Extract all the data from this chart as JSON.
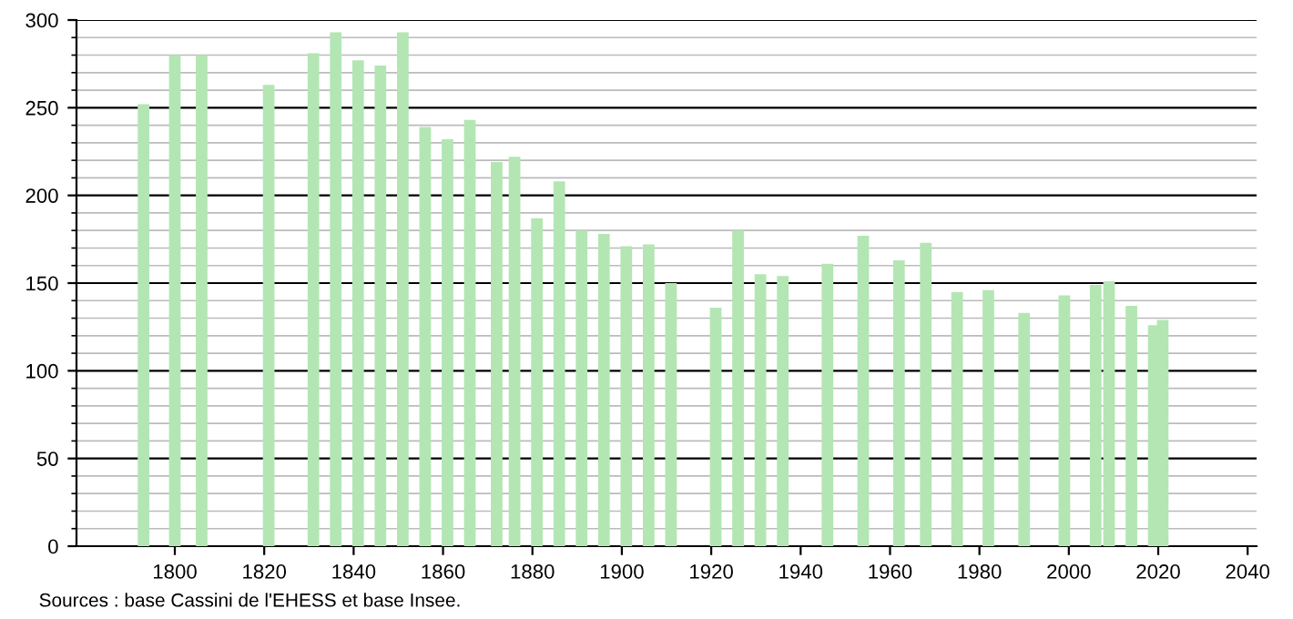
{
  "chart_data": {
    "type": "bar",
    "x": [
      1793,
      1800,
      1806,
      1821,
      1831,
      1836,
      1841,
      1846,
      1851,
      1856,
      1861,
      1866,
      1872,
      1876,
      1881,
      1886,
      1891,
      1896,
      1901,
      1906,
      1911,
      1921,
      1926,
      1931,
      1936,
      1946,
      1954,
      1962,
      1968,
      1975,
      1982,
      1990,
      1999,
      2006,
      2009,
      2014,
      2019,
      2021
    ],
    "values": [
      252,
      280,
      280,
      263,
      281,
      293,
      277,
      274,
      293,
      239,
      232,
      243,
      219,
      222,
      187,
      208,
      180,
      178,
      171,
      172,
      150,
      136,
      180,
      155,
      154,
      161,
      177,
      163,
      173,
      145,
      146,
      133,
      143,
      149,
      151,
      137,
      126,
      129
    ],
    "color": "#b3e6b3",
    "xlim": [
      1778,
      2042
    ],
    "xticks": [
      1800,
      1820,
      1840,
      1860,
      1880,
      1900,
      1920,
      1940,
      1960,
      1980,
      2000,
      2020,
      2040
    ],
    "ylim": [
      0,
      300
    ],
    "yticks": [
      0,
      50,
      100,
      150,
      200,
      250,
      300
    ],
    "grid": "y",
    "annotations": [
      "Sources : base Cassini de l'EHESS et base Insee."
    ]
  }
}
